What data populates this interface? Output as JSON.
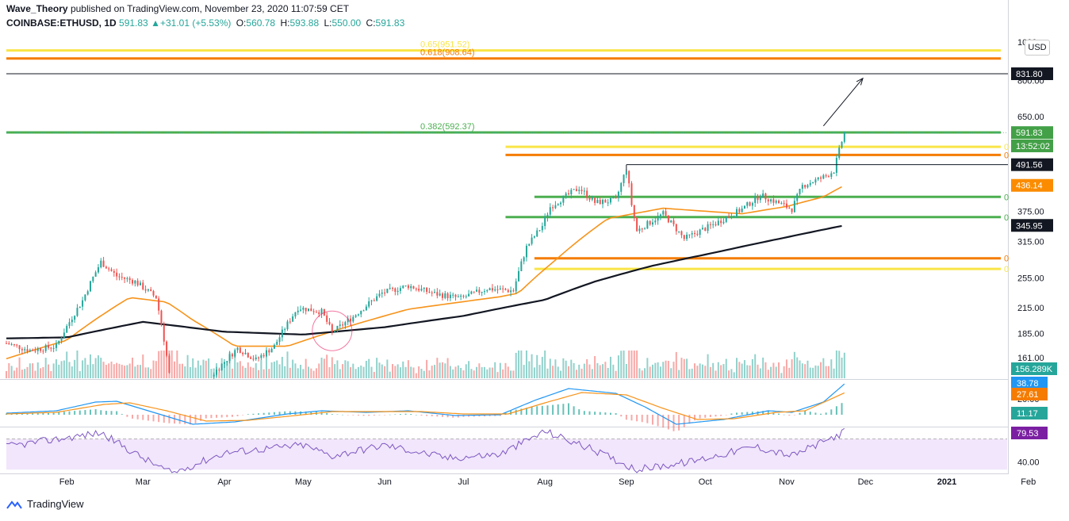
{
  "header": {
    "author": "Wave_Theory",
    "published": "published on TradingView.com, November 23, 2020 11:07:59 CET",
    "symbol": "COINBASE:ETHUSD, 1D",
    "last": "591.83",
    "change": "+31.01 (+5.53%)",
    "open_label": "O:",
    "open": "560.78",
    "high_label": "H:",
    "high": "593.88",
    "low_label": "L:",
    "low": "550.00",
    "close_label": "C:",
    "close": "591.83"
  },
  "currency_button": "USD",
  "footer": {
    "brand": "TradingView"
  },
  "colors": {
    "up": "#26a69a",
    "down": "#ef5350",
    "ma_orange": "#f7931a",
    "ma_black": "#131722",
    "fib_yellow": "#f9e547",
    "fib_orange": "#f57c00",
    "fib_green": "#4caf50",
    "macd_blue": "#2196f3",
    "rsi_purple": "#7e57c2",
    "rsi_fill": "#f1e6fb"
  },
  "chart_data": {
    "type": "candlestick",
    "title": "COINBASE:ETHUSD, 1D",
    "log_scale": true,
    "x_range": [
      "2020-01-09",
      "2020-11-23"
    ],
    "ylim": [
      148,
      1000
    ],
    "price_ticks": [
      "1000",
      "800.00",
      "650.00",
      "375.00",
      "315.00",
      "255.00",
      "215.00",
      "185.00",
      "161.00"
    ],
    "time_ticks": [
      "Feb",
      "Mar",
      "Apr",
      "May",
      "Jun",
      "Jul",
      "Aug",
      "Sep",
      "Oct",
      "Nov",
      "Dec",
      "2021",
      "Feb"
    ],
    "price_anchors": [
      {
        "date": "2020-01-09",
        "p": 175
      },
      {
        "date": "2020-01-18",
        "p": 168
      },
      {
        "date": "2020-01-28",
        "p": 172
      },
      {
        "date": "2020-02-07",
        "p": 224
      },
      {
        "date": "2020-02-14",
        "p": 280
      },
      {
        "date": "2020-02-20",
        "p": 258
      },
      {
        "date": "2020-02-27",
        "p": 250
      },
      {
        "date": "2020-03-06",
        "p": 228
      },
      {
        "date": "2020-03-12",
        "p": 130
      },
      {
        "date": "2020-03-16",
        "p": 115
      },
      {
        "date": "2020-03-24",
        "p": 137
      },
      {
        "date": "2020-04-06",
        "p": 170
      },
      {
        "date": "2020-04-13",
        "p": 159
      },
      {
        "date": "2020-04-20",
        "p": 172
      },
      {
        "date": "2020-04-29",
        "p": 215
      },
      {
        "date": "2020-05-08",
        "p": 210
      },
      {
        "date": "2020-05-12",
        "p": 186
      },
      {
        "date": "2020-05-20",
        "p": 204
      },
      {
        "date": "2020-05-31",
        "p": 234
      },
      {
        "date": "2020-06-10",
        "p": 244
      },
      {
        "date": "2020-06-20",
        "p": 233
      },
      {
        "date": "2020-06-30",
        "p": 227
      },
      {
        "date": "2020-07-10",
        "p": 240
      },
      {
        "date": "2020-07-20",
        "p": 237
      },
      {
        "date": "2020-07-25",
        "p": 305
      },
      {
        "date": "2020-07-31",
        "p": 345
      },
      {
        "date": "2020-08-03",
        "p": 385
      },
      {
        "date": "2020-08-14",
        "p": 430
      },
      {
        "date": "2020-08-20",
        "p": 395
      },
      {
        "date": "2020-08-28",
        "p": 400
      },
      {
        "date": "2020-09-01",
        "p": 480
      },
      {
        "date": "2020-09-03",
        "p": 390
      },
      {
        "date": "2020-09-05",
        "p": 335
      },
      {
        "date": "2020-09-15",
        "p": 370
      },
      {
        "date": "2020-09-23",
        "p": 320
      },
      {
        "date": "2020-10-05",
        "p": 350
      },
      {
        "date": "2020-10-15",
        "p": 380
      },
      {
        "date": "2020-10-22",
        "p": 412
      },
      {
        "date": "2020-11-03",
        "p": 380
      },
      {
        "date": "2020-11-07",
        "p": 435
      },
      {
        "date": "2020-11-16",
        "p": 460
      },
      {
        "date": "2020-11-19",
        "p": 475
      },
      {
        "date": "2020-11-23",
        "p": 592
      }
    ],
    "ma_orange_anchors": [
      {
        "date": "2020-01-09",
        "p": 160
      },
      {
        "date": "2020-02-01",
        "p": 178
      },
      {
        "date": "2020-02-25",
        "p": 228
      },
      {
        "date": "2020-03-10",
        "p": 222
      },
      {
        "date": "2020-03-20",
        "p": 200
      },
      {
        "date": "2020-04-05",
        "p": 172
      },
      {
        "date": "2020-04-25",
        "p": 172
      },
      {
        "date": "2020-05-15",
        "p": 190
      },
      {
        "date": "2020-06-10",
        "p": 213
      },
      {
        "date": "2020-07-15",
        "p": 229
      },
      {
        "date": "2020-07-22",
        "p": 234
      },
      {
        "date": "2020-08-05",
        "p": 283
      },
      {
        "date": "2020-08-25",
        "p": 360
      },
      {
        "date": "2020-09-15",
        "p": 382
      },
      {
        "date": "2020-10-15",
        "p": 370
      },
      {
        "date": "2020-11-01",
        "p": 386
      },
      {
        "date": "2020-11-15",
        "p": 408
      },
      {
        "date": "2020-11-23",
        "p": 436
      }
    ],
    "ma_black_anchors": [
      {
        "date": "2020-01-09",
        "p": 180
      },
      {
        "date": "2020-02-01",
        "p": 181
      },
      {
        "date": "2020-03-01",
        "p": 198
      },
      {
        "date": "2020-04-01",
        "p": 187
      },
      {
        "date": "2020-05-01",
        "p": 184
      },
      {
        "date": "2020-06-01",
        "p": 192
      },
      {
        "date": "2020-07-01",
        "p": 205
      },
      {
        "date": "2020-08-01",
        "p": 225
      },
      {
        "date": "2020-08-20",
        "p": 250
      },
      {
        "date": "2020-09-10",
        "p": 273
      },
      {
        "date": "2020-10-05",
        "p": 296
      },
      {
        "date": "2020-11-01",
        "p": 323
      },
      {
        "date": "2020-11-23",
        "p": 346
      }
    ],
    "fib_levels": [
      {
        "label": "0.65(951.52)",
        "price": 951.52,
        "color": "yellow",
        "from": "2020-01-09"
      },
      {
        "label": "0.618(908.64)",
        "price": 908.64,
        "color": "orange",
        "from": "2020-01-09"
      },
      {
        "label": "0.382(592.37)",
        "price": 592.37,
        "color": "green",
        "from": "2020-01-09"
      },
      {
        "label": "0",
        "price": 545,
        "color": "yellow",
        "from": "2020-07-17"
      },
      {
        "label": "0",
        "price": 520,
        "color": "orange",
        "from": "2020-07-17"
      },
      {
        "label": "0",
        "price": 408,
        "color": "green",
        "from": "2020-07-28"
      },
      {
        "label": "0",
        "price": 363,
        "color": "green",
        "from": "2020-07-17"
      },
      {
        "label": "0",
        "price": 286,
        "color": "orange",
        "from": "2020-07-28"
      },
      {
        "label": "0",
        "price": 269,
        "color": "yellow",
        "from": "2020-07-28"
      }
    ],
    "horizontal_line": {
      "price": 831.8,
      "label": "831.80"
    },
    "resistance_line": {
      "price": 491.56,
      "from": "2020-09-01"
    },
    "arrow": {
      "from_date": "2020-11-15",
      "from_price": 615,
      "to_date": "2020-11-30",
      "to_price": 810
    },
    "price_labels": [
      {
        "text": "831.80",
        "price": 831.8,
        "style": "dark"
      },
      {
        "text": "591.83",
        "price": 591.83,
        "style": "green"
      },
      {
        "text": "13:52:02",
        "price": 548,
        "style": "green"
      },
      {
        "text": "491.56",
        "price": 491.56,
        "style": "dark"
      },
      {
        "text": "436.14",
        "price": 436.14,
        "style": "orange"
      },
      {
        "text": "345.95",
        "price": 345.95,
        "style": "dark"
      }
    ],
    "volume_label": "156.289K",
    "volume_value": 156289,
    "macd": {
      "labels": [
        "38.78",
        "27.61",
        "11.17"
      ],
      "ticks": [
        "20.00"
      ],
      "macd_anchors": [
        {
          "date": "2020-01-09",
          "v": 2
        },
        {
          "date": "2020-01-28",
          "v": 5
        },
        {
          "date": "2020-02-12",
          "v": 16
        },
        {
          "date": "2020-02-20",
          "v": 17
        },
        {
          "date": "2020-03-05",
          "v": 3
        },
        {
          "date": "2020-03-20",
          "v": -12
        },
        {
          "date": "2020-04-05",
          "v": -9
        },
        {
          "date": "2020-04-25",
          "v": 1
        },
        {
          "date": "2020-05-08",
          "v": 5
        },
        {
          "date": "2020-05-25",
          "v": 3
        },
        {
          "date": "2020-06-10",
          "v": 5
        },
        {
          "date": "2020-06-28",
          "v": -1
        },
        {
          "date": "2020-07-15",
          "v": 0
        },
        {
          "date": "2020-07-28",
          "v": 18
        },
        {
          "date": "2020-08-10",
          "v": 33
        },
        {
          "date": "2020-08-28",
          "v": 27
        },
        {
          "date": "2020-09-08",
          "v": 10
        },
        {
          "date": "2020-09-20",
          "v": -12
        },
        {
          "date": "2020-10-08",
          "v": -6
        },
        {
          "date": "2020-10-25",
          "v": 5
        },
        {
          "date": "2020-11-03",
          "v": 3
        },
        {
          "date": "2020-11-15",
          "v": 16
        },
        {
          "date": "2020-11-23",
          "v": 38.78
        }
      ],
      "signal_anchors": [
        {
          "date": "2020-01-09",
          "v": 1
        },
        {
          "date": "2020-01-28",
          "v": 3
        },
        {
          "date": "2020-02-15",
          "v": 13
        },
        {
          "date": "2020-02-25",
          "v": 15
        },
        {
          "date": "2020-03-10",
          "v": 5
        },
        {
          "date": "2020-03-25",
          "v": -8
        },
        {
          "date": "2020-04-10",
          "v": -7
        },
        {
          "date": "2020-04-28",
          "v": -1
        },
        {
          "date": "2020-05-12",
          "v": 4
        },
        {
          "date": "2020-06-01",
          "v": 4
        },
        {
          "date": "2020-06-15",
          "v": 4
        },
        {
          "date": "2020-07-01",
          "v": 1
        },
        {
          "date": "2020-07-18",
          "v": 1
        },
        {
          "date": "2020-08-01",
          "v": 15
        },
        {
          "date": "2020-08-15",
          "v": 28
        },
        {
          "date": "2020-09-01",
          "v": 25
        },
        {
          "date": "2020-09-15",
          "v": 8
        },
        {
          "date": "2020-09-28",
          "v": -6
        },
        {
          "date": "2020-10-12",
          "v": -5
        },
        {
          "date": "2020-10-28",
          "v": 3
        },
        {
          "date": "2020-11-08",
          "v": 5
        },
        {
          "date": "2020-11-23",
          "v": 27.61
        }
      ],
      "ylim": [
        -14,
        42
      ]
    },
    "rsi": {
      "label": "79.53",
      "tick": "40.00",
      "upper_band": 70,
      "lower_band": 30,
      "ylim": [
        25,
        85
      ],
      "anchors": [
        {
          "date": "2020-01-09",
          "v": 60
        },
        {
          "date": "2020-02-14",
          "v": 78
        },
        {
          "date": "2020-03-01",
          "v": 45
        },
        {
          "date": "2020-03-12",
          "v": 25
        },
        {
          "date": "2020-04-01",
          "v": 52
        },
        {
          "date": "2020-05-01",
          "v": 62
        },
        {
          "date": "2020-05-12",
          "v": 48
        },
        {
          "date": "2020-06-01",
          "v": 62
        },
        {
          "date": "2020-06-25",
          "v": 45
        },
        {
          "date": "2020-07-15",
          "v": 50
        },
        {
          "date": "2020-08-01",
          "v": 80
        },
        {
          "date": "2020-08-20",
          "v": 55
        },
        {
          "date": "2020-09-05",
          "v": 30
        },
        {
          "date": "2020-09-25",
          "v": 40
        },
        {
          "date": "2020-10-20",
          "v": 60
        },
        {
          "date": "2020-11-03",
          "v": 48
        },
        {
          "date": "2020-11-15",
          "v": 66
        },
        {
          "date": "2020-11-23",
          "v": 79.53
        }
      ]
    }
  }
}
